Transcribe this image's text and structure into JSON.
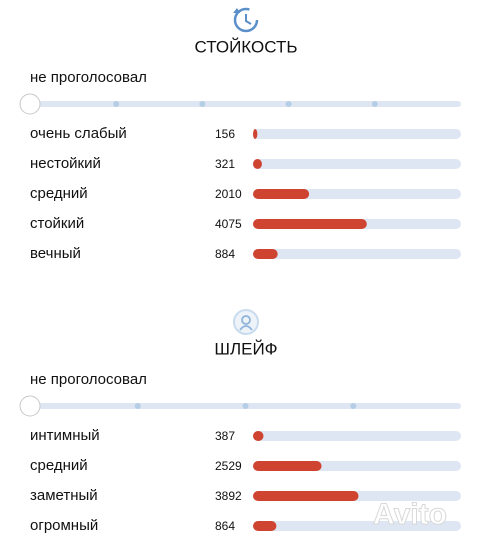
{
  "sections": [
    {
      "title": "СТОЙКОСТЬ",
      "slider_label": "не проголосовал",
      "rows": [
        {
          "label": "очень слабый",
          "count": 156
        },
        {
          "label": "нестойкий",
          "count": 321
        },
        {
          "label": "средний",
          "count": 2010
        },
        {
          "label": "стойкий",
          "count": 4075
        },
        {
          "label": "вечный",
          "count": 884
        }
      ]
    },
    {
      "title": "ШЛЕЙФ",
      "slider_label": "не проголосовал",
      "rows": [
        {
          "label": "интимный",
          "count": 387
        },
        {
          "label": "средний",
          "count": 2529
        },
        {
          "label": "заметный",
          "count": 3892
        },
        {
          "label": "огромный",
          "count": 864
        }
      ]
    }
  ],
  "watermark": "Avito"
}
